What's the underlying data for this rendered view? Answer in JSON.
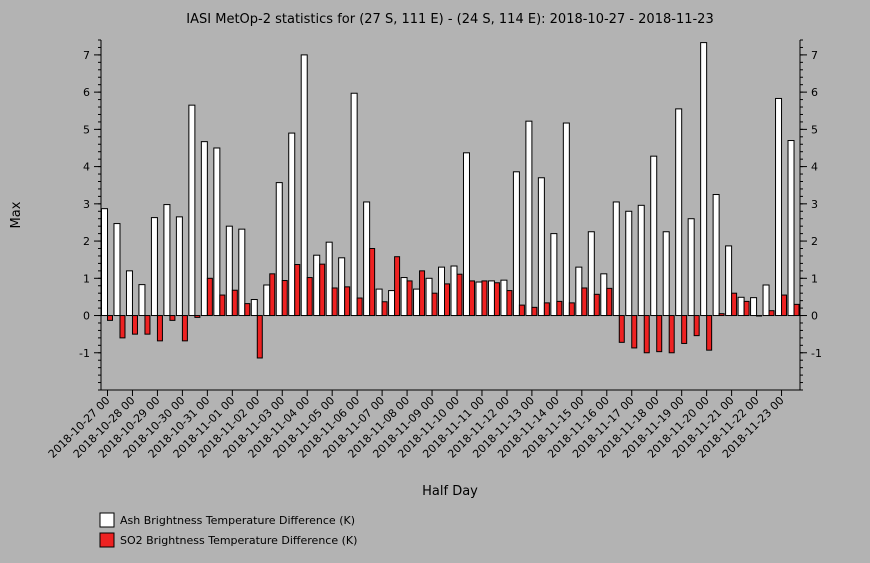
{
  "chart_data": {
    "type": "bar",
    "title": "IASI MetOp-2 statistics for (27 S, 111 E) - (24 S, 114 E): 2018-10-27 - 2018-11-23",
    "xlabel": "Half Day",
    "ylabel": "Max",
    "ylim": [
      -2,
      7.4
    ],
    "yticks": [
      -1,
      0,
      1,
      2,
      3,
      4,
      5,
      6,
      7
    ],
    "grid": false,
    "legend_position": "bottom-left",
    "tick_labels": [
      "2018-10-27 00",
      "2018-10-28 00",
      "2018-10-29 00",
      "2018-10-30 00",
      "2018-10-31 00",
      "2018-11-01 00",
      "2018-11-02 00",
      "2018-11-03 00",
      "2018-11-04 00",
      "2018-11-05 00",
      "2018-11-06 00",
      "2018-11-07 00",
      "2018-11-08 00",
      "2018-11-09 00",
      "2018-11-10 00",
      "2018-11-11 00",
      "2018-11-12 00",
      "2018-11-13 00",
      "2018-11-14 00",
      "2018-11-15 00",
      "2018-11-16 00",
      "2018-11-17 00",
      "2018-11-18 00",
      "2018-11-19 00",
      "2018-11-20 00",
      "2018-11-21 00",
      "2018-11-22 00",
      "2018-11-23 00"
    ],
    "series": [
      {
        "name": "Ash Brightness Temperature Difference (K)",
        "color": "#ffffff",
        "values": [
          2.87,
          2.47,
          1.2,
          0.83,
          2.63,
          2.98,
          2.65,
          5.65,
          4.67,
          4.5,
          2.4,
          2.32,
          0.43,
          0.82,
          3.57,
          4.9,
          7.0,
          1.62,
          1.97,
          1.55,
          5.97,
          3.05,
          0.71,
          0.67,
          1.02,
          0.71,
          1.0,
          1.3,
          1.33,
          4.37,
          0.9,
          0.93,
          0.95,
          3.86,
          5.22,
          3.7,
          2.2,
          5.17,
          1.3,
          2.25,
          1.12,
          3.05,
          2.8,
          2.96,
          4.28,
          2.25,
          5.55,
          2.6,
          7.33,
          3.25,
          1.87,
          0.49,
          0.48,
          0.82,
          5.83,
          4.7
        ]
      },
      {
        "name": "SO2 Brightness Temperature Difference (K)",
        "color": "#ee2222",
        "values": [
          -0.13,
          -0.6,
          -0.5,
          -0.5,
          -0.68,
          -0.13,
          -0.68,
          -0.05,
          1.0,
          0.55,
          0.68,
          0.32,
          -1.14,
          1.12,
          0.94,
          1.37,
          1.02,
          1.38,
          0.74,
          0.77,
          0.47,
          1.8,
          0.37,
          1.58,
          0.93,
          1.2,
          0.6,
          0.85,
          1.11,
          0.93,
          0.93,
          0.88,
          0.67,
          0.28,
          0.22,
          0.34,
          0.38,
          0.34,
          0.74,
          0.57,
          0.73,
          -0.72,
          -0.87,
          -1.0,
          -0.97,
          -1.0,
          -0.75,
          -0.54,
          -0.93,
          0.05,
          0.6,
          0.38,
          0.0,
          0.13,
          0.55,
          0.3
        ]
      }
    ]
  }
}
